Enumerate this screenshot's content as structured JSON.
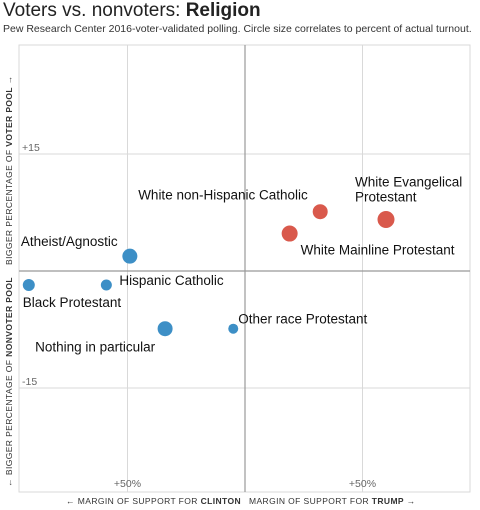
{
  "header": {
    "title_plain": "Voters vs. nonvoters: ",
    "title_bold": "Religion",
    "subtitle": "Pew Research Center 2016-voter-validated polling. Circle size correlates to percent of actual turnout."
  },
  "chart_data": {
    "type": "scatter",
    "x": {
      "ticks": [
        {
          "value": -50,
          "label": "+50%"
        },
        {
          "value": 50,
          "label": "+50%"
        }
      ],
      "label_left_prefix": "← MARGIN OF SUPPORT FOR ",
      "label_left_bold": "CLINTON",
      "label_right_prefix": "MARGIN OF SUPPORT FOR ",
      "label_right_bold": "TRUMP",
      "label_right_suffix": " →"
    },
    "y": {
      "ticks": [
        {
          "value": 15,
          "label": "+15"
        },
        {
          "value": -15,
          "label": "-15"
        }
      ],
      "label_top_prefix": "BIGGER PERCENTAGE OF ",
      "label_top_bold": "VOTER POOL",
      "label_top_suffix": " →",
      "label_bottom_prefix": "← BIGGER PERCENTAGE OF ",
      "label_bottom_bold": "NONVOTER POOL"
    },
    "colors": {
      "clinton": "#3d8fc6",
      "trump": "#d9594c",
      "grid": "#d9d9d9",
      "axis": "#999999"
    },
    "points": [
      {
        "label": "White Evangelical Protestant",
        "label_lines": [
          "White Evangelical",
          "Protestant"
        ],
        "x": 60,
        "y": 6.6,
        "size": 8.5,
        "party": "trump"
      },
      {
        "label": "White non-Hispanic Catholic",
        "label_lines": [
          "White non-Hispanic Catholic"
        ],
        "x": 32,
        "y": 7.6,
        "size": 7.5,
        "party": "trump"
      },
      {
        "label": "White Mainline Protestant",
        "label_lines": [
          "White Mainline Protestant"
        ],
        "x": 19,
        "y": 4.8,
        "size": 8,
        "party": "trump"
      },
      {
        "label": "Atheist/Agnostic",
        "label_lines": [
          "Atheist/Agnostic"
        ],
        "x": -49,
        "y": 1.9,
        "size": 7.5,
        "party": "clinton"
      },
      {
        "label": "Hispanic Catholic",
        "label_lines": [
          "Hispanic Catholic"
        ],
        "x": -59,
        "y": -1.8,
        "size": 5.5,
        "party": "clinton"
      },
      {
        "label": "Black Protestant",
        "label_lines": [
          "Black Protestant"
        ],
        "x": -92,
        "y": -1.8,
        "size": 6,
        "party": "clinton"
      },
      {
        "label": "Nothing in particular",
        "label_lines": [
          "Nothing in particular"
        ],
        "x": -34,
        "y": -7.4,
        "size": 7.5,
        "party": "clinton"
      },
      {
        "label": "Other race Protestant",
        "label_lines": [
          "Other race Protestant"
        ],
        "x": -5,
        "y": -7.4,
        "size": 5,
        "party": "clinton"
      }
    ]
  }
}
